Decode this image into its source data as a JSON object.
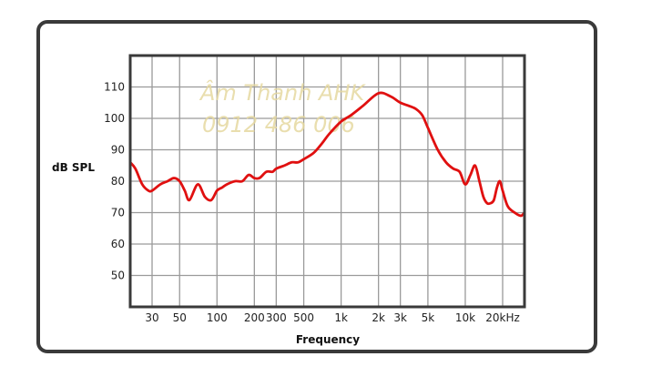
{
  "chart_data": {
    "type": "line",
    "title": "",
    "xlabel": "Frequency",
    "ylabel": "dB SPL",
    "x_scale": "log",
    "xlim": [
      20,
      30000
    ],
    "ylim": [
      40,
      120
    ],
    "grid": true,
    "x_tick_labels": [
      "30",
      "50",
      "100",
      "200",
      "300",
      "500",
      "1k",
      "2k",
      "3k",
      "5k",
      "10k",
      "20kHz"
    ],
    "x_tick_values": [
      30,
      50,
      100,
      200,
      300,
      500,
      1000,
      2000,
      3000,
      5000,
      10000,
      20000
    ],
    "y_ticks": [
      50,
      60,
      70,
      80,
      90,
      100,
      110
    ],
    "line_color": "#e01010",
    "series": [
      {
        "x": [
          20,
          22,
          25,
          28,
          30,
          35,
          40,
          45,
          50,
          55,
          60,
          70,
          80,
          90,
          100,
          110,
          120,
          140,
          160,
          180,
          200,
          220,
          250,
          280,
          300,
          350,
          400,
          450,
          500,
          600,
          700,
          800,
          1000,
          1200,
          1500,
          2000,
          2500,
          3000,
          3500,
          4000,
          4500,
          5000,
          6000,
          7000,
          8000,
          9000,
          10000,
          11000,
          12000,
          13000,
          14000,
          15000,
          16000,
          17000,
          18000,
          19000,
          20000,
          22000,
          25000,
          28000,
          30000
        ],
        "y": [
          86,
          84,
          79,
          77,
          77,
          79,
          80,
          81,
          80,
          77,
          74,
          79,
          75,
          74,
          77,
          78,
          79,
          80,
          80,
          82,
          81,
          81,
          83,
          83,
          84,
          85,
          86,
          86,
          87,
          89,
          92,
          95,
          99,
          101,
          104,
          108,
          107,
          105,
          104,
          103,
          101,
          97,
          90,
          86,
          84,
          83,
          79,
          82,
          85,
          80,
          75,
          73,
          73,
          74,
          78,
          80,
          77,
          72,
          70,
          69,
          70
        ]
      }
    ]
  },
  "watermark": {
    "line1": "Âm Thanh AHK",
    "line2": "0912 486 006"
  }
}
